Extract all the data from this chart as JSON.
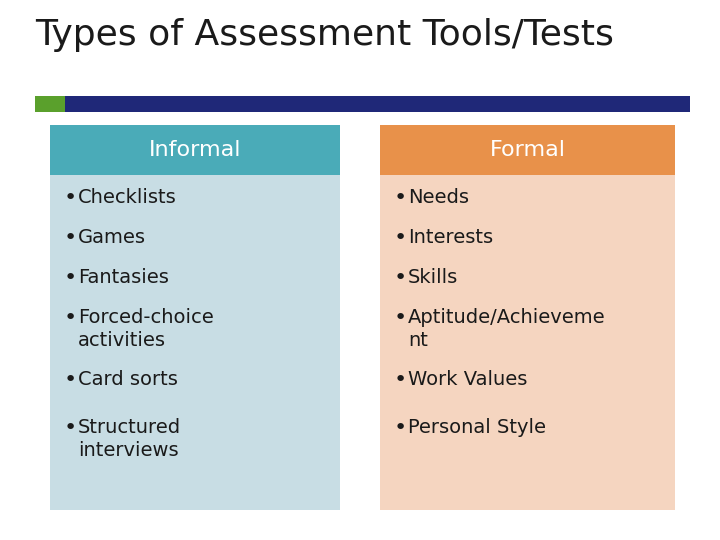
{
  "title": "Types of Assessment Tools/Tests",
  "title_fontsize": 26,
  "title_color": "#1a1a1a",
  "background_color": "#ffffff",
  "bar_green_color": "#5aa02c",
  "bar_navy_color": "#1f2878",
  "informal_header": "Informal",
  "formal_header": "Formal",
  "informal_header_bg": "#4aabb8",
  "formal_header_bg": "#e8914a",
  "informal_body_bg": "#c8dde4",
  "formal_body_bg": "#f5d5c0",
  "header_text_color": "#ffffff",
  "body_text_color": "#1a1a1a",
  "informal_items": [
    "Checklists",
    "Games",
    "Fantasies",
    "Forced-choice\nactivities",
    "Card sorts",
    "Structured\ninterviews"
  ],
  "formal_items": [
    "Needs",
    "Interests",
    "Skills",
    "Aptitude/Achieveme\nnt",
    "Work Values",
    "Personal Style"
  ],
  "header_fontsize": 16,
  "body_fontsize": 14
}
